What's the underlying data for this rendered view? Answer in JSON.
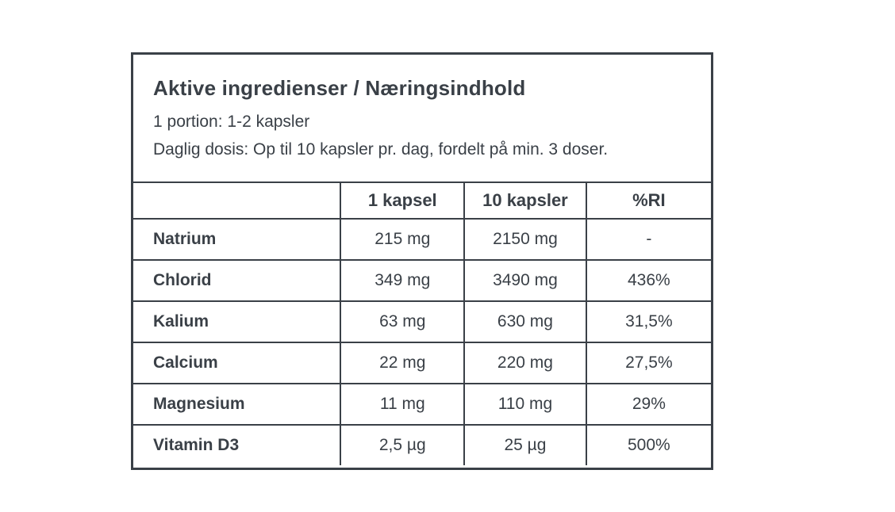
{
  "info_box": {
    "title": "Aktive ingredienser / Næringsindhold",
    "portion_line": "1 portion: 1-2 kapsler",
    "dosage_line": "Daglig dosis: Op til 10 kapsler pr. dag, fordelt på min. 3 doser."
  },
  "table": {
    "columns": [
      "",
      "1 kapsel",
      "10 kapsler",
      "%RI"
    ],
    "rows": [
      {
        "name": "Natrium",
        "per_capsule": "215 mg",
        "per_ten": "2150 mg",
        "ri": "-"
      },
      {
        "name": "Chlorid",
        "per_capsule": "349 mg",
        "per_ten": "3490 mg",
        "ri": "436%"
      },
      {
        "name": "Kalium",
        "per_capsule": "63 mg",
        "per_ten": "630 mg",
        "ri": "31,5%"
      },
      {
        "name": "Calcium",
        "per_capsule": "22 mg",
        "per_ten": "220 mg",
        "ri": "27,5%"
      },
      {
        "name": "Magnesium",
        "per_capsule": "11 mg",
        "per_ten": "110 mg",
        "ri": "29%"
      },
      {
        "name": "Vitamin D3",
        "per_capsule": "2,5 µg",
        "per_ten": "25 µg",
        "ri": "500%"
      }
    ]
  },
  "colors": {
    "text": "#3a4047",
    "border": "#3a4047",
    "background": "#ffffff"
  }
}
